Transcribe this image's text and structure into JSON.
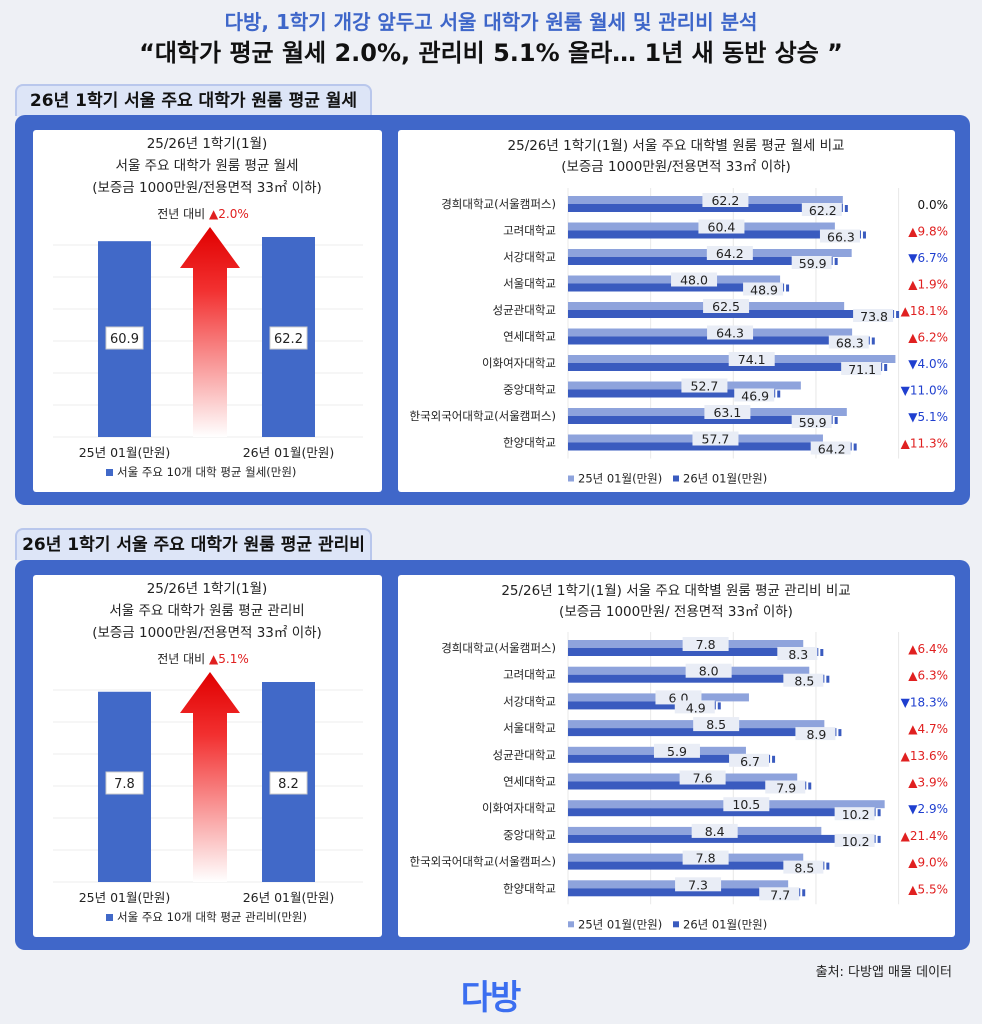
{
  "header": {
    "title_line1": "다방, 1학기 개강 앞두고 서울 대학가 원룸 월세 및 관리비 분석",
    "title_line2": "“대학가 평균 월세 2.0%, 관리비 5.1% 올라… 1년 새 동반 상승 ”"
  },
  "sections": [
    {
      "tab": "26년 1학기 서울 주요 대학가 원룸 평균 월세"
    },
    {
      "tab": "26년 1학기 서울 주요 대학가 원룸 평균 관리비"
    }
  ],
  "colors": {
    "accent": "#4067c9",
    "bar_2025": "#8ea3dc",
    "bar_2026": "#3a5bbf",
    "up": "#e02020",
    "down": "#1f3fcf"
  },
  "chart_data": [
    {
      "type": "bar",
      "title": [
        "25/26년 1학기(1월)",
        "서울 주요 대학가 원룸 평균 월세",
        "(보증금 1000만원/전용면적 33㎡ 이하)"
      ],
      "annotation": "전년 대비 ▲2.0%",
      "categories": [
        "25년 01월(만원)",
        "26년 01월(만원)"
      ],
      "values": [
        60.9,
        62.2
      ],
      "legend": "서울 주요 10개 대학 평균 월세(만원)",
      "ylim": [
        0,
        70
      ]
    },
    {
      "type": "bar",
      "orientation": "horizontal",
      "title": [
        "25/26년 1학기(1월) 서울 주요 대학별 원룸 평균 월세 비교",
        "(보증금 1000만원/전용면적 33㎡ 이하)"
      ],
      "categories": [
        "경희대학교(서울캠퍼스)",
        "고려대학교",
        "서강대학교",
        "서울대학교",
        "성균관대학교",
        "연세대학교",
        "이화여자대학교",
        "중앙대학교",
        "한국외국어대학교(서울캠퍼스)",
        "한양대학교"
      ],
      "series": [
        {
          "name": "25년 01월(만원)",
          "values": [
            62.2,
            60.4,
            64.2,
            48.0,
            62.5,
            64.3,
            74.1,
            52.7,
            63.1,
            57.7
          ]
        },
        {
          "name": "26년 01월(만원)",
          "values": [
            62.2,
            66.3,
            59.9,
            48.9,
            73.8,
            68.3,
            71.1,
            46.9,
            59.9,
            64.2
          ]
        }
      ],
      "changes": [
        "0.0%",
        "▲9.8%",
        "▼6.7%",
        "▲1.9%",
        "▲18.1%",
        "▲6.2%",
        "▼4.0%",
        "▼11.0%",
        "▼5.1%",
        "▲11.3%"
      ],
      "xlim": [
        0,
        86
      ],
      "legend": "bottom"
    },
    {
      "type": "bar",
      "title": [
        "25/26년 1학기(1월)",
        "서울 주요 대학가 원룸 평균 관리비",
        "(보증금 1000만원/전용면적 33㎡ 이하)"
      ],
      "annotation": "전년 대비 ▲5.1%",
      "categories": [
        "25년 01월(만원)",
        "26년 01월(만원)"
      ],
      "values": [
        7.8,
        8.2
      ],
      "legend": "서울 주요 10개 대학 평균 관리비(만원)",
      "ylim": [
        0,
        9
      ]
    },
    {
      "type": "bar",
      "orientation": "horizontal",
      "title": [
        "25/26년 1학기(1월) 서울 주요 대학별 원룸 평균 관리비 비교",
        "(보증금 1000만원/ 전용면적 33㎡ 이하)"
      ],
      "categories": [
        "경희대학교(서울캠퍼스)",
        "고려대학교",
        "서강대학교",
        "서울대학교",
        "성균관대학교",
        "연세대학교",
        "이화여자대학교",
        "중앙대학교",
        "한국외국어대학교(서울캠퍼스)",
        "한양대학교"
      ],
      "series": [
        {
          "name": "25년 01월(만원)",
          "values": [
            7.8,
            8.0,
            6.0,
            8.5,
            5.9,
            7.6,
            10.5,
            8.4,
            7.8,
            7.3
          ]
        },
        {
          "name": "26년 01월(만원)",
          "values": [
            8.3,
            8.5,
            4.9,
            8.9,
            6.7,
            7.9,
            10.2,
            10.2,
            8.5,
            7.7
          ]
        }
      ],
      "changes": [
        "▲6.4%",
        "▲6.3%",
        "▼18.3%",
        "▲4.7%",
        "▲13.6%",
        "▲3.9%",
        "▼2.9%",
        "▲21.4%",
        "▲9.0%",
        "▲5.5%"
      ],
      "xlim": [
        0,
        12.6
      ],
      "legend": "bottom"
    }
  ],
  "footer": {
    "source": "출처: 다방앱 매물 데이터",
    "logo": "다방"
  }
}
